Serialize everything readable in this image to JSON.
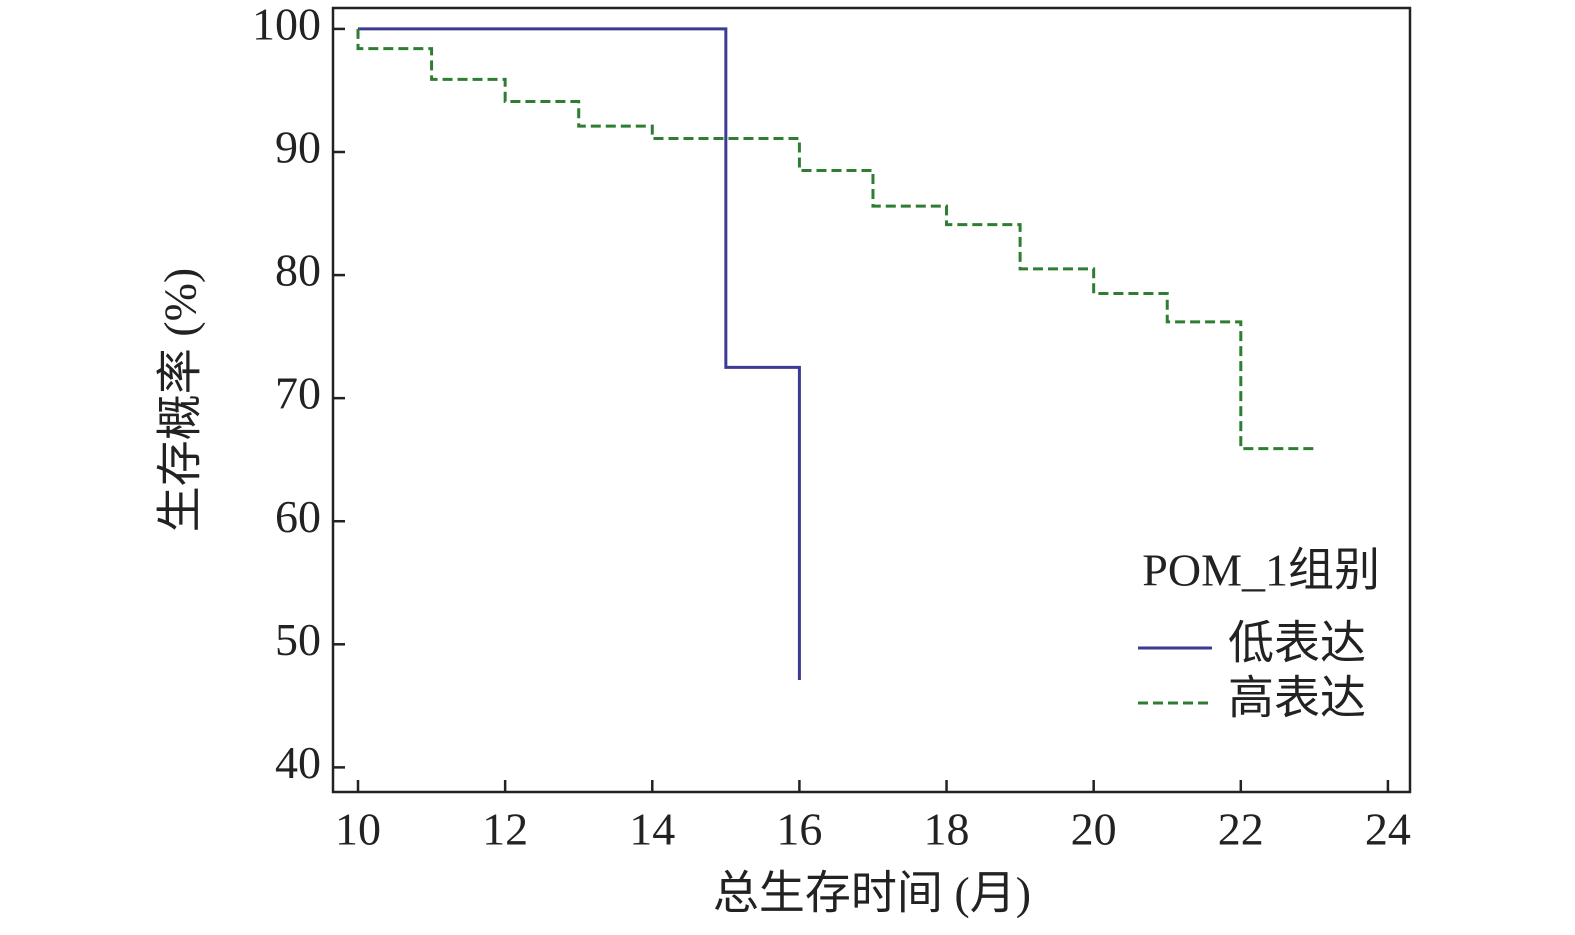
{
  "chart_data": {
    "type": "line",
    "step": "post",
    "y_label": "生存概率 (%)",
    "x_label": "总生存时间 (月)",
    "legend_title": "POM_1组别",
    "legend_position": "lower right",
    "xlim": [
      9.66,
      24.3
    ],
    "xticks": [
      10,
      12,
      14,
      16,
      18,
      20,
      22,
      24
    ],
    "ylim": [
      38.0,
      101.7
    ],
    "yticks": [
      40,
      50,
      60,
      70,
      80,
      90,
      100
    ],
    "series": [
      {
        "name": "低表达",
        "color": "#3b3b94",
        "dash": "solid",
        "x": [
          10,
          15,
          16
        ],
        "values": [
          100,
          72.5,
          47.1
        ]
      },
      {
        "name": "高表达",
        "color": "#2e7d32",
        "dash": "dashed",
        "x": [
          10,
          10,
          11,
          12,
          13,
          14,
          16,
          17,
          18,
          19,
          20,
          21,
          22,
          23
        ],
        "values": [
          100,
          98.4,
          95.9,
          94.1,
          92.1,
          91.1,
          88.5,
          85.6,
          84.1,
          80.5,
          78.5,
          76.2,
          65.9,
          65.9
        ]
      }
    ]
  }
}
